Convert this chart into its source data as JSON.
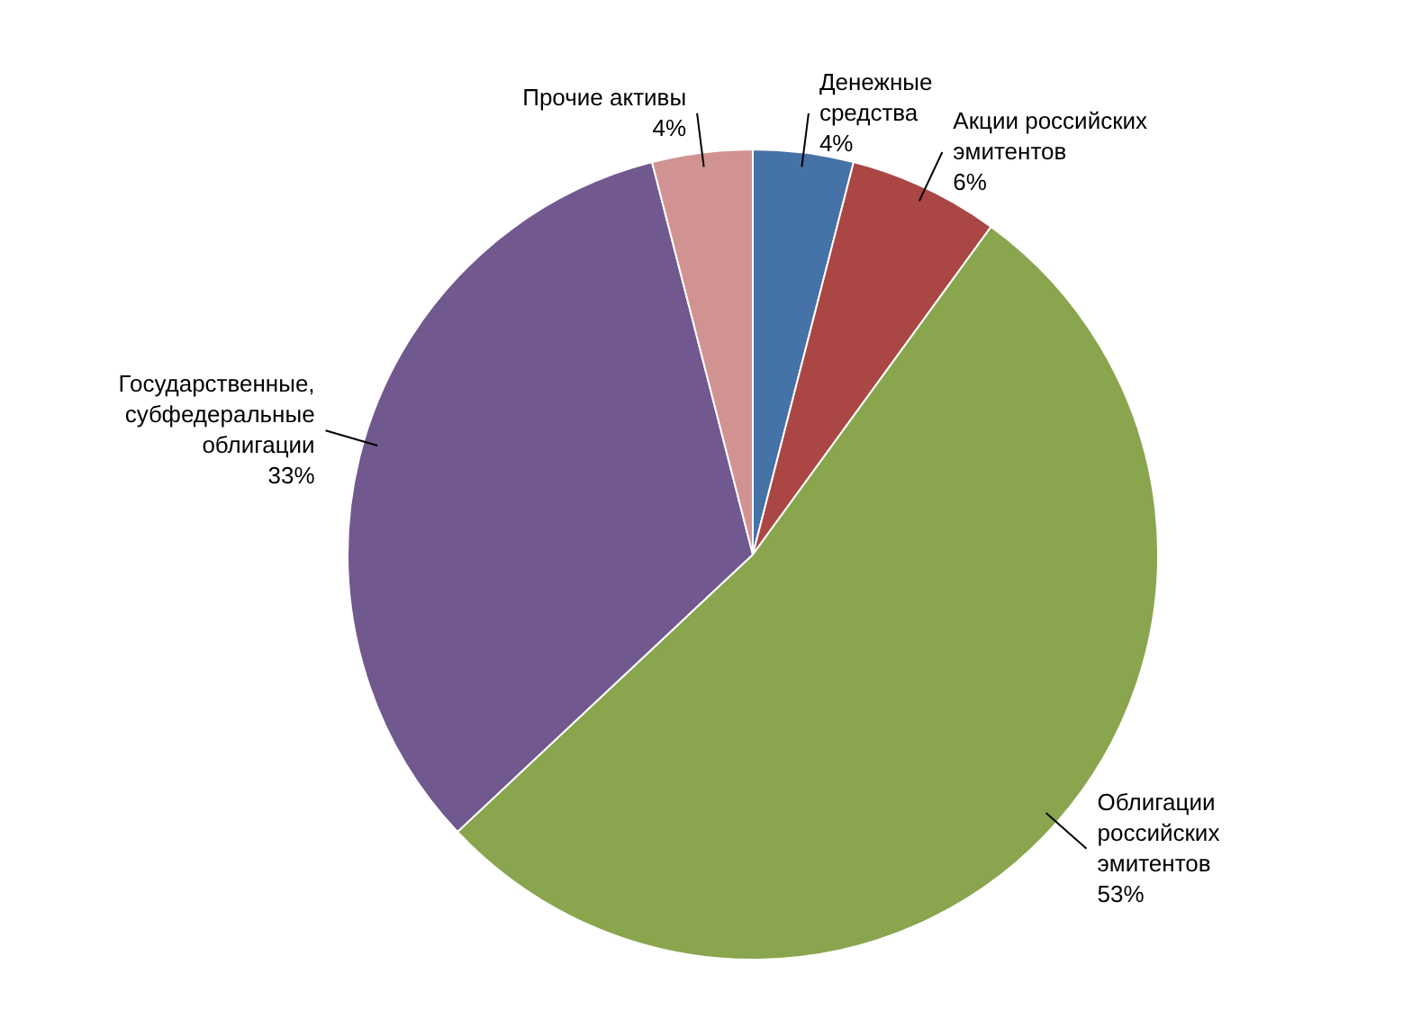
{
  "chart_data": {
    "type": "pie",
    "categories": [
      "Денежные\nсредства",
      "Акции российских\nэмитентов",
      "Облигации\nроссийских\nэмитентов",
      "Государственные,\nсубфедеральные\nоблигации",
      "Прочие активы"
    ],
    "values": [
      4,
      6,
      53,
      33,
      4
    ],
    "value_labels": [
      "4%",
      "6%",
      "53%",
      "33%",
      "4%"
    ],
    "colors": [
      "#4572a7",
      "#aa4643",
      "#89a54e",
      "#71588f",
      "#d19392"
    ],
    "legend": false
  }
}
